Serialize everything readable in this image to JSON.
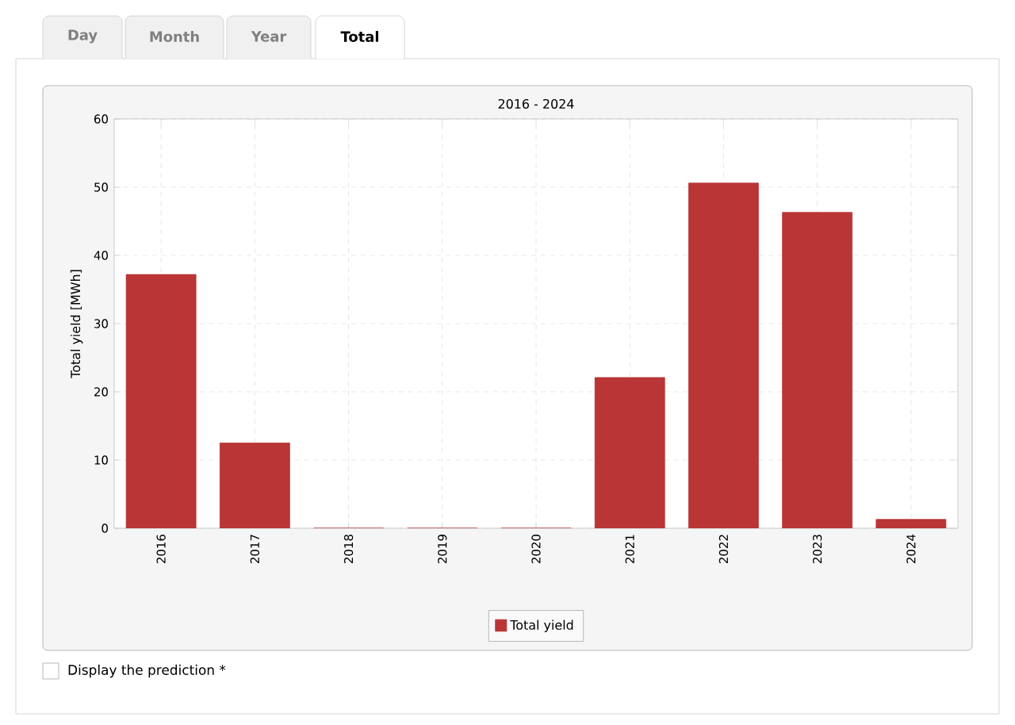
{
  "chart_data": {
    "type": "bar",
    "title": "2016 - 2024",
    "ylabel": "Total yield [MWh]",
    "categories": [
      "2016",
      "2017",
      "2018",
      "2019",
      "2020",
      "2021",
      "2022",
      "2023",
      "2024"
    ],
    "series": [
      {
        "name": "Total yield",
        "color": "#b93536",
        "values": [
          37.2,
          12.5,
          0,
          0,
          0,
          22.1,
          50.6,
          46.3,
          1.3
        ]
      }
    ],
    "ylim": [
      0,
      60
    ],
    "yticks": [
      0,
      10,
      20,
      30,
      40,
      50,
      60
    ],
    "grid": true,
    "legend": "bottom",
    "annotations": [
      "Day",
      "Month",
      "Year",
      "Total",
      "Display the prediction *"
    ]
  }
}
